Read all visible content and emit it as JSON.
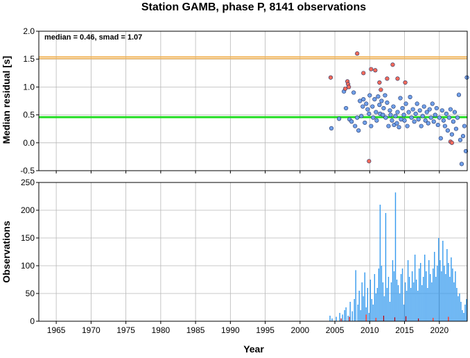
{
  "chart_data": [
    {
      "type": "scatter",
      "title": "Station GAMB, phase P, 8141 observations",
      "xlabel": "",
      "ylabel": "Median residual [s]",
      "annotation": "median = 0.46, smad = 1.07",
      "xlim": [
        1962.5,
        2024
      ],
      "ylim": [
        -0.5,
        2.0
      ],
      "xticks": [
        "1965",
        "1970",
        "1975",
        "1980",
        "1985",
        "1990",
        "1995",
        "2000",
        "2005",
        "2010",
        "2015",
        "2020"
      ],
      "yticks": [
        "-0.5",
        "0.0",
        "0.5",
        "1.0",
        "1.5",
        "2.0"
      ],
      "grid": true,
      "median_line": 0.46,
      "upper_band_lines": [
        1.51,
        1.54
      ],
      "colors": {
        "good": "#6f9fe8",
        "outlier": "#f26a5a",
        "median": "#22dd22",
        "band": "#f0b050",
        "bars": "#3399ee",
        "bars_outlier": "#dd2222"
      },
      "series": [
        {
          "category": "good",
          "x": [
            2004.5,
            2005.6,
            2006.3,
            2006.6,
            2007.1,
            2007.4,
            2007.7,
            2007.9,
            2008.2,
            2008.4,
            2008.6,
            2008.8,
            2009.0,
            2009.1,
            2009.3,
            2009.5,
            2009.7,
            2009.9,
            2010.0,
            2010.2,
            2010.4,
            2010.5,
            2010.7,
            2010.9,
            2011.0,
            2011.2,
            2011.4,
            2011.5,
            2011.7,
            2011.9,
            2012.0,
            2012.2,
            2012.3,
            2012.5,
            2012.7,
            2012.9,
            2013.0,
            2013.2,
            2013.4,
            2013.5,
            2013.7,
            2013.9,
            2014.0,
            2014.2,
            2014.4,
            2014.5,
            2014.7,
            2014.9,
            2015.0,
            2015.2,
            2015.4,
            2015.6,
            2015.8,
            2016.0,
            2016.2,
            2016.4,
            2016.6,
            2016.8,
            2017.0,
            2017.2,
            2017.4,
            2017.6,
            2017.8,
            2018.0,
            2018.2,
            2018.4,
            2018.6,
            2018.8,
            2019.0,
            2019.2,
            2019.4,
            2019.6,
            2019.8,
            2020.0,
            2020.2,
            2020.4,
            2020.6,
            2020.8,
            2021.0,
            2021.2,
            2021.4,
            2021.6,
            2021.8,
            2022.0,
            2022.2,
            2022.4,
            2022.6,
            2022.8,
            2023.0,
            2023.2,
            2023.4,
            2023.6,
            2023.8,
            2023.95
          ],
          "y": [
            0.26,
            0.43,
            0.92,
            0.62,
            0.42,
            0.38,
            0.9,
            0.3,
            0.45,
            0.22,
            0.75,
            0.48,
            0.65,
            0.78,
            0.36,
            0.7,
            0.6,
            0.52,
            0.85,
            0.3,
            0.65,
            0.45,
            0.78,
            0.55,
            0.4,
            0.83,
            0.68,
            0.52,
            0.75,
            0.5,
            0.62,
            0.85,
            0.45,
            0.72,
            0.3,
            0.58,
            0.5,
            0.4,
            0.65,
            0.32,
            0.48,
            0.35,
            0.55,
            0.28,
            0.8,
            0.42,
            0.62,
            0.5,
            0.4,
            0.7,
            0.3,
            0.55,
            0.82,
            0.45,
            0.6,
            0.38,
            0.52,
            0.7,
            0.42,
            0.58,
            0.3,
            0.48,
            0.65,
            0.4,
            0.55,
            0.35,
            0.6,
            0.45,
            0.7,
            0.38,
            0.5,
            0.62,
            0.32,
            0.45,
            0.08,
            0.58,
            0.4,
            0.3,
            0.52,
            0.22,
            0.45,
            0.6,
            0.15,
            0.38,
            0.55,
            0.25,
            0.45,
            0.86,
            0.05,
            -0.38,
            0.12,
            0.3,
            -0.15,
            1.17
          ]
        },
        {
          "category": "outlier",
          "x": [
            2004.4,
            2006.5,
            2006.8,
            2006.9,
            2007.0,
            2008.2,
            2009.1,
            2009.9,
            2010.2,
            2010.8,
            2011.4,
            2011.6,
            2012.5,
            2013.3,
            2014.0,
            2015.1,
            2021.6,
            2021.8
          ],
          "y": [
            1.17,
            0.97,
            1.1,
            1.05,
            1.0,
            1.6,
            1.25,
            -0.33,
            1.32,
            1.3,
            1.08,
            0.95,
            1.15,
            1.4,
            1.15,
            1.08,
            0.02,
            0.0
          ]
        }
      ]
    },
    {
      "type": "bar",
      "title": "",
      "xlabel": "Year",
      "ylabel": "Observations",
      "xlim": [
        1962.5,
        2024
      ],
      "ylim": [
        0,
        250
      ],
      "xticks": [
        "1965",
        "1970",
        "1975",
        "1980",
        "1985",
        "1990",
        "1995",
        "2000",
        "2005",
        "2010",
        "2015",
        "2020"
      ],
      "yticks": [
        "0",
        "50",
        "100",
        "150",
        "200",
        "250"
      ],
      "grid": true,
      "series": [
        {
          "name": "",
          "category": "observations",
          "x": [
            2004.3,
            2004.6,
            2005.2,
            2005.7,
            2006.1,
            2006.4,
            2006.6,
            2006.9,
            2007.2,
            2007.5,
            2007.8,
            2008.0,
            2008.3,
            2008.5,
            2008.7,
            2008.9,
            2009.1,
            2009.3,
            2009.5,
            2009.7,
            2009.9,
            2010.1,
            2010.3,
            2010.5,
            2010.7,
            2010.9,
            2011.1,
            2011.3,
            2011.5,
            2011.7,
            2011.9,
            2012.1,
            2012.3,
            2012.5,
            2012.7,
            2012.9,
            2013.1,
            2013.3,
            2013.5,
            2013.7,
            2013.9,
            2014.1,
            2014.3,
            2014.5,
            2014.7,
            2014.9,
            2015.1,
            2015.3,
            2015.5,
            2015.7,
            2015.9,
            2016.1,
            2016.3,
            2016.5,
            2016.7,
            2016.9,
            2017.1,
            2017.3,
            2017.5,
            2017.7,
            2017.9,
            2018.1,
            2018.3,
            2018.5,
            2018.7,
            2018.9,
            2019.1,
            2019.3,
            2019.5,
            2019.7,
            2019.9,
            2020.1,
            2020.3,
            2020.5,
            2020.7,
            2020.9,
            2021.1,
            2021.3,
            2021.5,
            2021.7,
            2021.9,
            2022.1,
            2022.3,
            2022.5,
            2022.7,
            2022.9,
            2023.1,
            2023.3,
            2023.5,
            2023.7,
            2023.9
          ],
          "y": [
            10,
            5,
            8,
            15,
            12,
            20,
            25,
            10,
            35,
            18,
            40,
            92,
            30,
            55,
            20,
            70,
            45,
            88,
            25,
            60,
            15,
            75,
            40,
            30,
            85,
            50,
            60,
            95,
            210,
            100,
            70,
            45,
            195,
            60,
            80,
            35,
            70,
            110,
            90,
            232,
            75,
            65,
            50,
            85,
            95,
            30,
            70,
            55,
            110,
            80,
            60,
            90,
            70,
            120,
            75,
            55,
            95,
            105,
            65,
            80,
            120,
            90,
            60,
            110,
            85,
            70,
            95,
            125,
            80,
            100,
            150,
            110,
            90,
            145,
            100,
            85,
            130,
            105,
            80,
            115,
            95,
            70,
            90,
            60,
            45,
            50,
            35,
            20,
            15,
            30,
            40
          ]
        },
        {
          "name": "",
          "category": "outlier",
          "x": [
            2005.9,
            2007.1,
            2009.5,
            2010.9,
            2012.0,
            2013.6,
            2015.2,
            2017.0,
            2019.1,
            2021.3
          ],
          "y": [
            5,
            8,
            12,
            6,
            10,
            7,
            9,
            5,
            6,
            8
          ]
        }
      ]
    }
  ]
}
